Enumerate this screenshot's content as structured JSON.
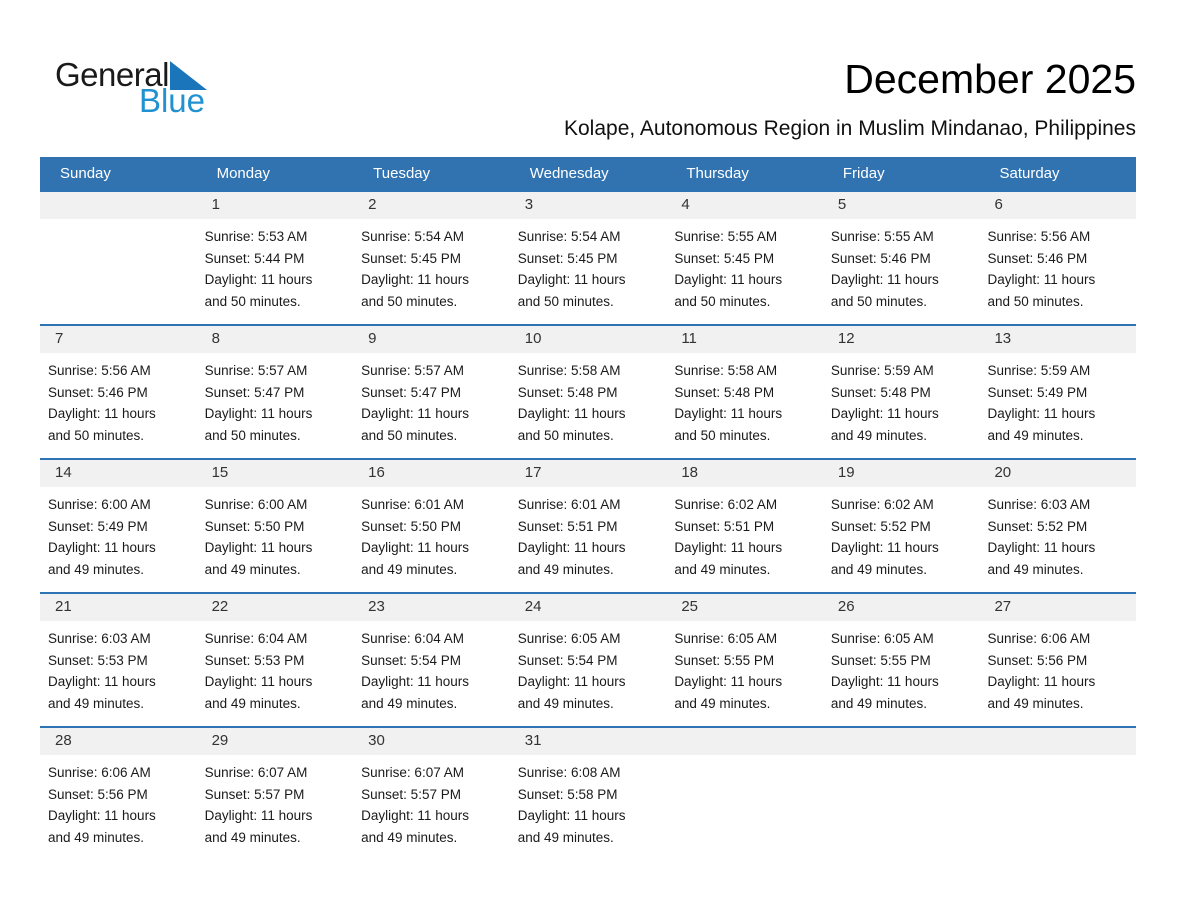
{
  "logo": {
    "general_text": "General",
    "blue_text": "Blue",
    "general_color": "#1a1a1a",
    "blue_color": "#2191d0",
    "triangle_color": "#1b75bb",
    "triangle_icon": "blue-triangle"
  },
  "header": {
    "title": "December 2025",
    "subtitle": "Kolape, Autonomous Region in Muslim Mindanao, Philippines"
  },
  "colors": {
    "weekday_header_bg": "#3173b1",
    "weekday_header_text": "#ffffff",
    "week_separator": "#2e74b5",
    "day_number_band_bg": "#f1f1f1"
  },
  "calendar": {
    "weekdays": [
      "Sunday",
      "Monday",
      "Tuesday",
      "Wednesday",
      "Thursday",
      "Friday",
      "Saturday"
    ],
    "weeks": [
      {
        "cells": [
          {
            "day": "",
            "lines": []
          },
          {
            "day": "1",
            "lines": [
              "Sunrise: 5:53 AM",
              "Sunset: 5:44 PM",
              "Daylight: 11 hours",
              "and 50 minutes."
            ]
          },
          {
            "day": "2",
            "lines": [
              "Sunrise: 5:54 AM",
              "Sunset: 5:45 PM",
              "Daylight: 11 hours",
              "and 50 minutes."
            ]
          },
          {
            "day": "3",
            "lines": [
              "Sunrise: 5:54 AM",
              "Sunset: 5:45 PM",
              "Daylight: 11 hours",
              "and 50 minutes."
            ]
          },
          {
            "day": "4",
            "lines": [
              "Sunrise: 5:55 AM",
              "Sunset: 5:45 PM",
              "Daylight: 11 hours",
              "and 50 minutes."
            ]
          },
          {
            "day": "5",
            "lines": [
              "Sunrise: 5:55 AM",
              "Sunset: 5:46 PM",
              "Daylight: 11 hours",
              "and 50 minutes."
            ]
          },
          {
            "day": "6",
            "lines": [
              "Sunrise: 5:56 AM",
              "Sunset: 5:46 PM",
              "Daylight: 11 hours",
              "and 50 minutes."
            ]
          }
        ]
      },
      {
        "cells": [
          {
            "day": "7",
            "lines": [
              "Sunrise: 5:56 AM",
              "Sunset: 5:46 PM",
              "Daylight: 11 hours",
              "and 50 minutes."
            ]
          },
          {
            "day": "8",
            "lines": [
              "Sunrise: 5:57 AM",
              "Sunset: 5:47 PM",
              "Daylight: 11 hours",
              "and 50 minutes."
            ]
          },
          {
            "day": "9",
            "lines": [
              "Sunrise: 5:57 AM",
              "Sunset: 5:47 PM",
              "Daylight: 11 hours",
              "and 50 minutes."
            ]
          },
          {
            "day": "10",
            "lines": [
              "Sunrise: 5:58 AM",
              "Sunset: 5:48 PM",
              "Daylight: 11 hours",
              "and 50 minutes."
            ]
          },
          {
            "day": "11",
            "lines": [
              "Sunrise: 5:58 AM",
              "Sunset: 5:48 PM",
              "Daylight: 11 hours",
              "and 50 minutes."
            ]
          },
          {
            "day": "12",
            "lines": [
              "Sunrise: 5:59 AM",
              "Sunset: 5:48 PM",
              "Daylight: 11 hours",
              "and 49 minutes."
            ]
          },
          {
            "day": "13",
            "lines": [
              "Sunrise: 5:59 AM",
              "Sunset: 5:49 PM",
              "Daylight: 11 hours",
              "and 49 minutes."
            ]
          }
        ]
      },
      {
        "cells": [
          {
            "day": "14",
            "lines": [
              "Sunrise: 6:00 AM",
              "Sunset: 5:49 PM",
              "Daylight: 11 hours",
              "and 49 minutes."
            ]
          },
          {
            "day": "15",
            "lines": [
              "Sunrise: 6:00 AM",
              "Sunset: 5:50 PM",
              "Daylight: 11 hours",
              "and 49 minutes."
            ]
          },
          {
            "day": "16",
            "lines": [
              "Sunrise: 6:01 AM",
              "Sunset: 5:50 PM",
              "Daylight: 11 hours",
              "and 49 minutes."
            ]
          },
          {
            "day": "17",
            "lines": [
              "Sunrise: 6:01 AM",
              "Sunset: 5:51 PM",
              "Daylight: 11 hours",
              "and 49 minutes."
            ]
          },
          {
            "day": "18",
            "lines": [
              "Sunrise: 6:02 AM",
              "Sunset: 5:51 PM",
              "Daylight: 11 hours",
              "and 49 minutes."
            ]
          },
          {
            "day": "19",
            "lines": [
              "Sunrise: 6:02 AM",
              "Sunset: 5:52 PM",
              "Daylight: 11 hours",
              "and 49 minutes."
            ]
          },
          {
            "day": "20",
            "lines": [
              "Sunrise: 6:03 AM",
              "Sunset: 5:52 PM",
              "Daylight: 11 hours",
              "and 49 minutes."
            ]
          }
        ]
      },
      {
        "cells": [
          {
            "day": "21",
            "lines": [
              "Sunrise: 6:03 AM",
              "Sunset: 5:53 PM",
              "Daylight: 11 hours",
              "and 49 minutes."
            ]
          },
          {
            "day": "22",
            "lines": [
              "Sunrise: 6:04 AM",
              "Sunset: 5:53 PM",
              "Daylight: 11 hours",
              "and 49 minutes."
            ]
          },
          {
            "day": "23",
            "lines": [
              "Sunrise: 6:04 AM",
              "Sunset: 5:54 PM",
              "Daylight: 11 hours",
              "and 49 minutes."
            ]
          },
          {
            "day": "24",
            "lines": [
              "Sunrise: 6:05 AM",
              "Sunset: 5:54 PM",
              "Daylight: 11 hours",
              "and 49 minutes."
            ]
          },
          {
            "day": "25",
            "lines": [
              "Sunrise: 6:05 AM",
              "Sunset: 5:55 PM",
              "Daylight: 11 hours",
              "and 49 minutes."
            ]
          },
          {
            "day": "26",
            "lines": [
              "Sunrise: 6:05 AM",
              "Sunset: 5:55 PM",
              "Daylight: 11 hours",
              "and 49 minutes."
            ]
          },
          {
            "day": "27",
            "lines": [
              "Sunrise: 6:06 AM",
              "Sunset: 5:56 PM",
              "Daylight: 11 hours",
              "and 49 minutes."
            ]
          }
        ]
      },
      {
        "cells": [
          {
            "day": "28",
            "lines": [
              "Sunrise: 6:06 AM",
              "Sunset: 5:56 PM",
              "Daylight: 11 hours",
              "and 49 minutes."
            ]
          },
          {
            "day": "29",
            "lines": [
              "Sunrise: 6:07 AM",
              "Sunset: 5:57 PM",
              "Daylight: 11 hours",
              "and 49 minutes."
            ]
          },
          {
            "day": "30",
            "lines": [
              "Sunrise: 6:07 AM",
              "Sunset: 5:57 PM",
              "Daylight: 11 hours",
              "and 49 minutes."
            ]
          },
          {
            "day": "31",
            "lines": [
              "Sunrise: 6:08 AM",
              "Sunset: 5:58 PM",
              "Daylight: 11 hours",
              "and 49 minutes."
            ]
          },
          {
            "day": "",
            "lines": []
          },
          {
            "day": "",
            "lines": []
          },
          {
            "day": "",
            "lines": []
          }
        ]
      }
    ]
  }
}
